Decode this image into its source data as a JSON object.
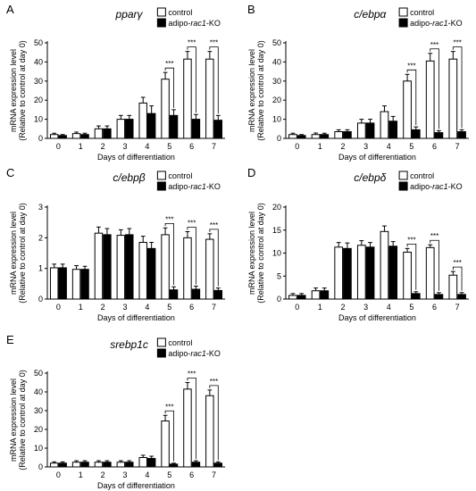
{
  "legend": {
    "control": "control",
    "ko_prefix": "adipo-",
    "ko_gene": "rac1",
    "ko_suffix": "-KO"
  },
  "ylabel_line1": "mRNA expression level",
  "ylabel_line2": "(Relative to control at day 0)",
  "xlabel": "Days of differentiation",
  "sig_label": "***",
  "colors": {
    "control": "#ffffff",
    "ko": "#000000"
  },
  "chart_data": [
    {
      "type": "bar",
      "panel": "A",
      "gene": "pparγ",
      "categories": [
        "0",
        "1",
        "2",
        "3",
        "4",
        "5",
        "6",
        "7"
      ],
      "ylim": [
        0,
        50
      ],
      "yticks": [
        0,
        10,
        20,
        30,
        40,
        50
      ],
      "series": [
        {
          "name": "control",
          "values": [
            2,
            2.5,
            5,
            10,
            18.5,
            31,
            41.5,
            41.5
          ],
          "errors": [
            0.7,
            0.8,
            1.5,
            2,
            3,
            3.5,
            4,
            4
          ]
        },
        {
          "name": "adipo-rac1-KO",
          "values": [
            1.5,
            2,
            5,
            10,
            13,
            12,
            10,
            9.5
          ],
          "errors": [
            0.5,
            0.7,
            1.5,
            2,
            4,
            3,
            2.5,
            2.5
          ]
        }
      ],
      "significance": [
        5,
        6,
        7
      ]
    },
    {
      "type": "bar",
      "panel": "B",
      "gene": "c/ebpα",
      "categories": [
        "0",
        "1",
        "2",
        "3",
        "4",
        "5",
        "6",
        "7"
      ],
      "ylim": [
        0,
        50
      ],
      "yticks": [
        0,
        10,
        20,
        30,
        40,
        50
      ],
      "series": [
        {
          "name": "control",
          "values": [
            2,
            2,
            3.5,
            8,
            14,
            30,
            40.5,
            41.5
          ],
          "errors": [
            0.7,
            0.8,
            1,
            2,
            3,
            3.5,
            4,
            4
          ]
        },
        {
          "name": "adipo-rac1-KO",
          "values": [
            1.5,
            2,
            3.5,
            8,
            9,
            4.5,
            3,
            3.5
          ],
          "errors": [
            0.5,
            0.7,
            1,
            2,
            2.5,
            1.5,
            1,
            1
          ]
        }
      ],
      "significance": [
        5,
        6,
        7
      ]
    },
    {
      "type": "bar",
      "panel": "C",
      "gene": "c/ebpβ",
      "categories": [
        "0",
        "1",
        "2",
        "3",
        "4",
        "5",
        "6",
        "7"
      ],
      "ylim": [
        0,
        3
      ],
      "yticks": [
        0,
        1,
        2,
        3
      ],
      "series": [
        {
          "name": "control",
          "values": [
            1.02,
            0.97,
            2.15,
            2.08,
            1.85,
            2.1,
            2.0,
            1.95
          ],
          "errors": [
            0.12,
            0.12,
            0.2,
            0.18,
            0.2,
            0.22,
            0.2,
            0.18
          ]
        },
        {
          "name": "adipo-rac1-KO",
          "values": [
            1.02,
            0.97,
            2.1,
            2.1,
            1.65,
            0.3,
            0.32,
            0.28
          ],
          "errors": [
            0.12,
            0.1,
            0.2,
            0.2,
            0.2,
            0.1,
            0.1,
            0.08
          ]
        }
      ],
      "significance": [
        5,
        6,
        7
      ]
    },
    {
      "type": "bar",
      "panel": "D",
      "gene": "c/ebpδ",
      "categories": [
        "0",
        "1",
        "2",
        "3",
        "4",
        "5",
        "6",
        "7"
      ],
      "ylim": [
        0,
        20
      ],
      "yticks": [
        0,
        5,
        10,
        15,
        20
      ],
      "series": [
        {
          "name": "control",
          "values": [
            0.8,
            1.8,
            11.3,
            11.7,
            14.7,
            10.2,
            11.2,
            5.2
          ],
          "errors": [
            0.4,
            0.6,
            1,
            1,
            1.2,
            0.8,
            0.6,
            0.8
          ]
        },
        {
          "name": "adipo-rac1-KO",
          "values": [
            0.8,
            1.8,
            11,
            11.3,
            11.5,
            1.2,
            1.0,
            1.0
          ],
          "errors": [
            0.4,
            0.6,
            1.2,
            1,
            1,
            0.4,
            0.4,
            0.4
          ]
        }
      ],
      "significance": [
        5,
        6,
        7
      ]
    },
    {
      "type": "bar",
      "panel": "E",
      "gene": "srebp1c",
      "categories": [
        "0",
        "1",
        "2",
        "3",
        "4",
        "5",
        "6",
        "7"
      ],
      "ylim": [
        0,
        50
      ],
      "yticks": [
        0,
        10,
        20,
        30,
        40,
        50
      ],
      "series": [
        {
          "name": "control",
          "values": [
            2,
            2.5,
            2.5,
            2.5,
            5,
            24.5,
            41.5,
            38
          ],
          "errors": [
            0.7,
            0.8,
            0.8,
            0.8,
            1.2,
            3,
            3.5,
            3
          ]
        },
        {
          "name": "adipo-rac1-KO",
          "values": [
            2,
            2.5,
            2.5,
            2.5,
            4.5,
            1.5,
            2.5,
            2
          ],
          "errors": [
            0.7,
            0.8,
            0.8,
            0.8,
            1.2,
            0.5,
            0.8,
            0.7
          ]
        }
      ],
      "significance": [
        5,
        6,
        7
      ]
    }
  ]
}
